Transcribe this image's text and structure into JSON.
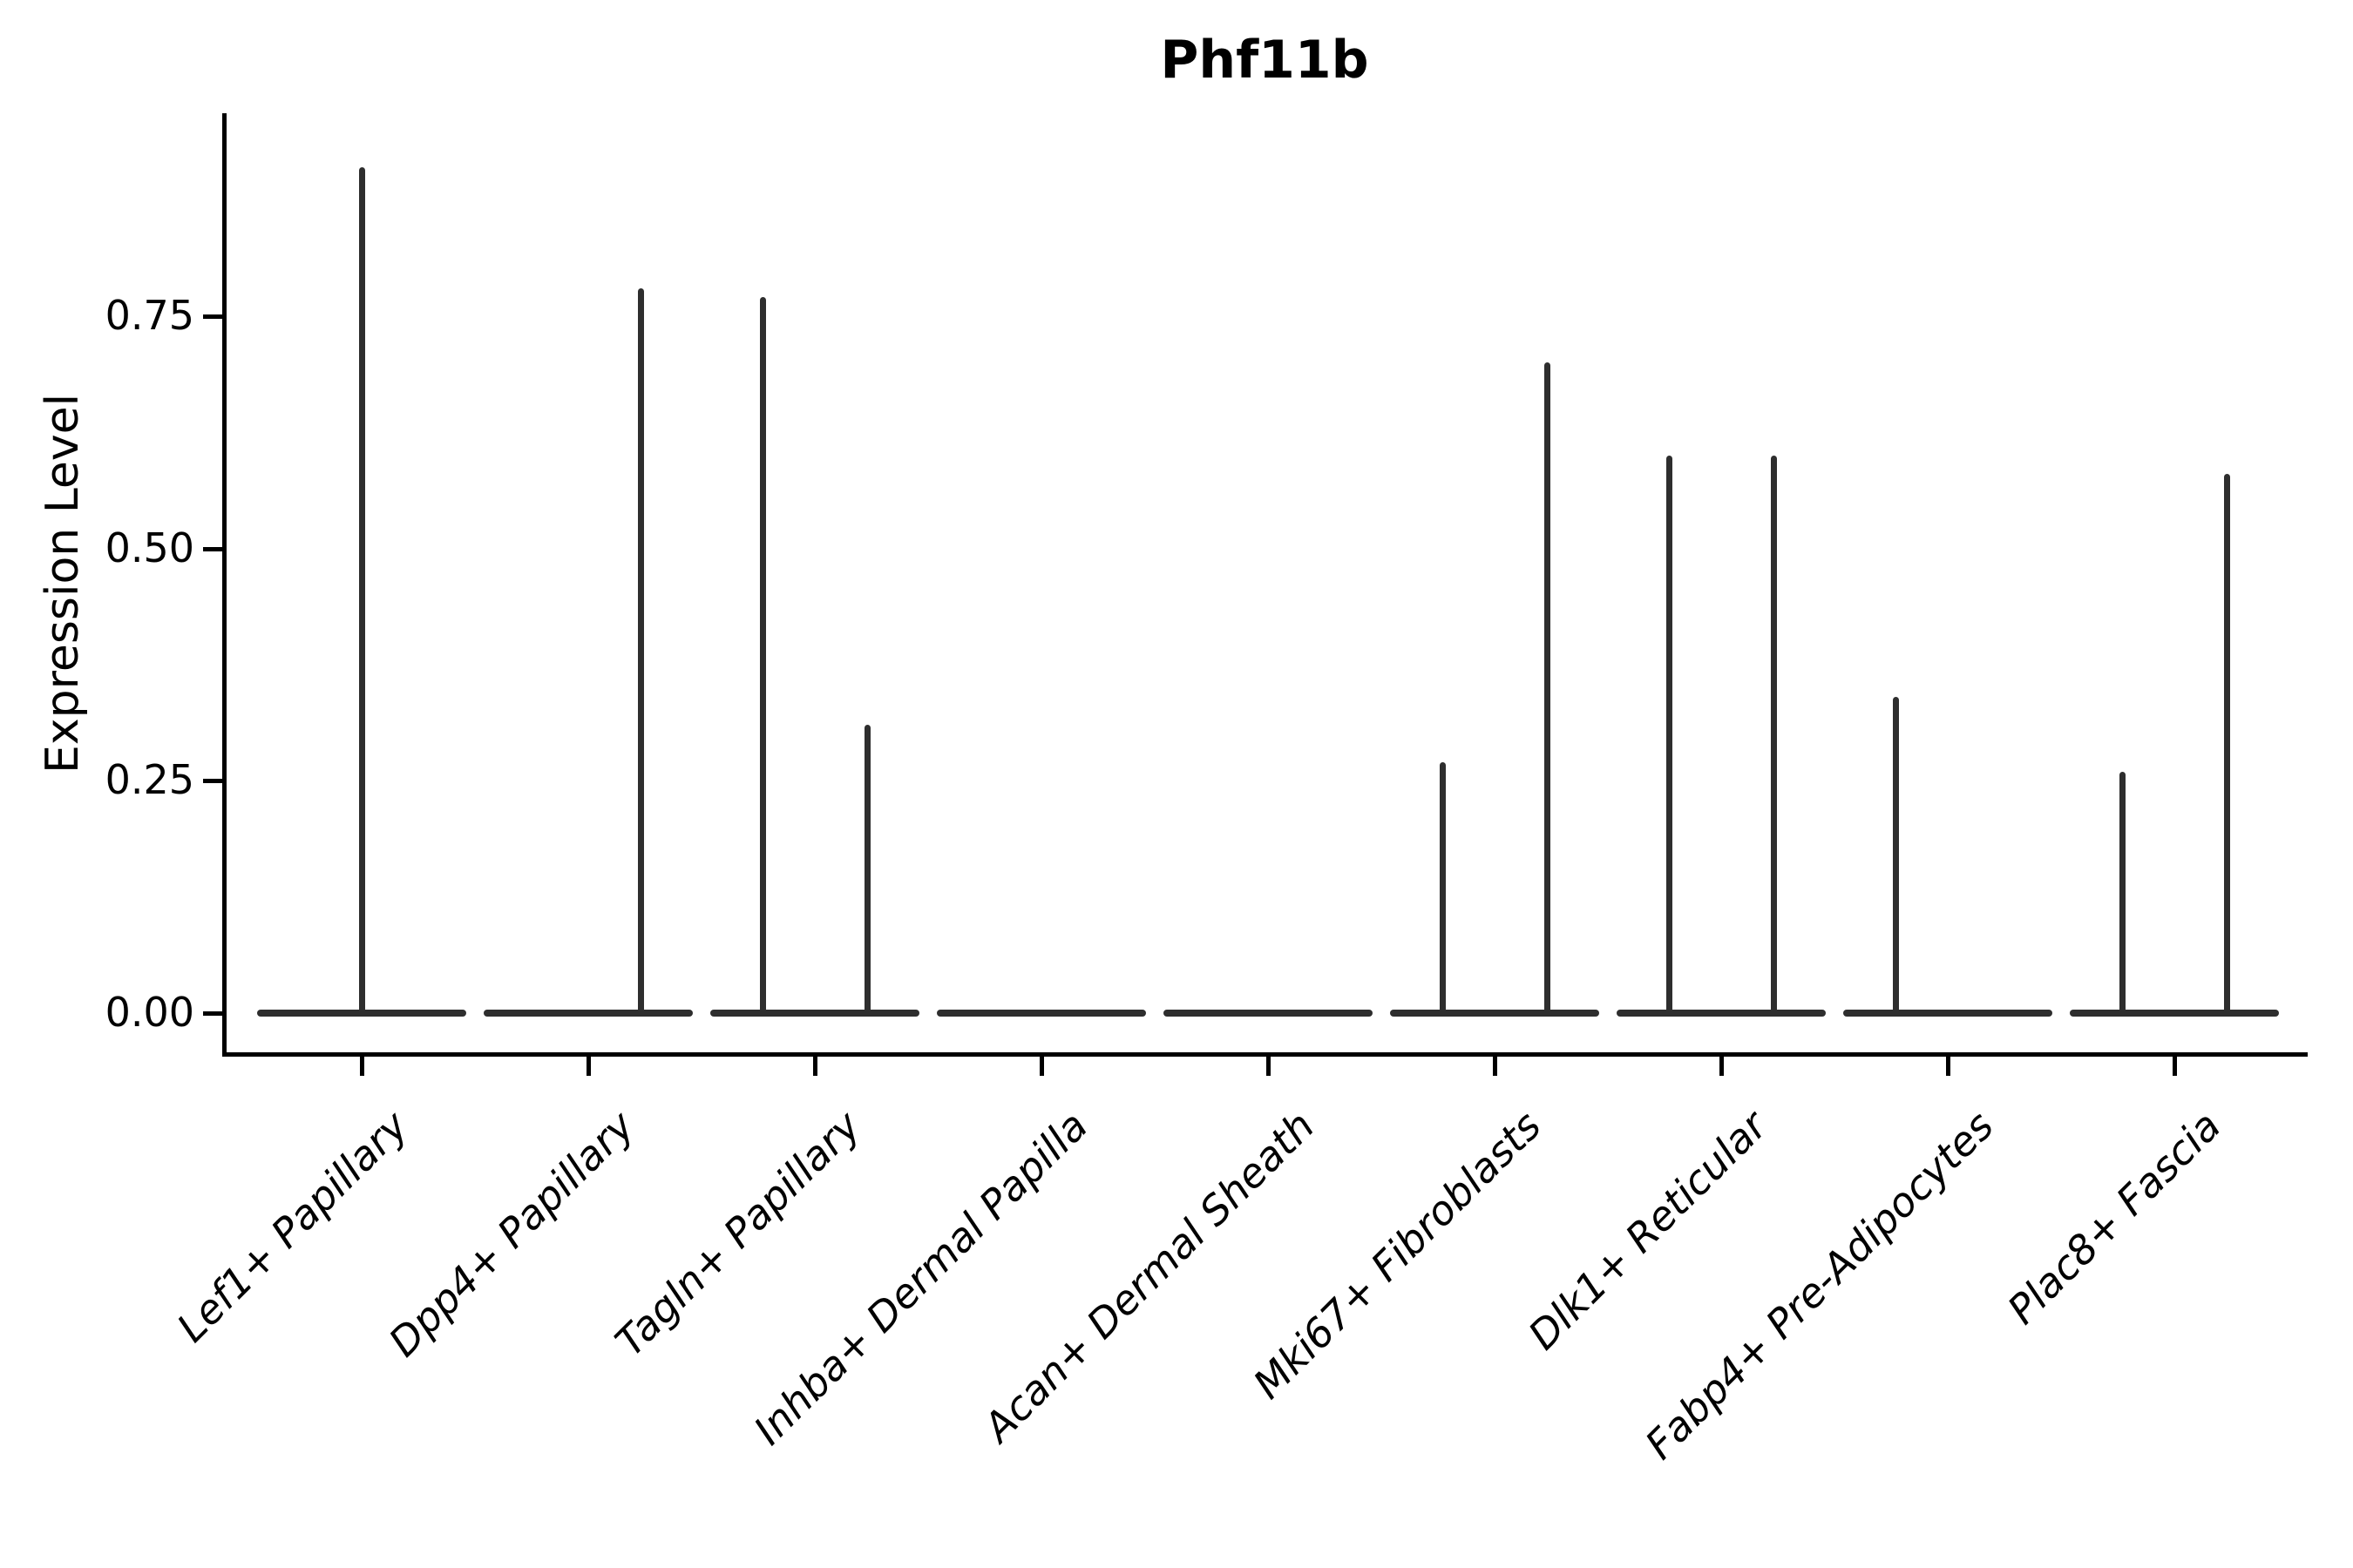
{
  "chart_data": {
    "type": "violin",
    "title": "Phf11b",
    "ylabel": "Expression Level",
    "xlabel": "",
    "ylim": [
      0,
      0.97
    ],
    "grid": false,
    "legend": "none",
    "yticks": [
      {
        "label": "0.00",
        "value": 0.0
      },
      {
        "label": "0.25",
        "value": 0.25
      },
      {
        "label": "0.50",
        "value": 0.5
      },
      {
        "label": "0.75",
        "value": 0.75
      }
    ],
    "categories": [
      "Lef1+ Papillary",
      "Dpp4+ Papillary",
      "Tagln+ Papillary",
      "Inhba+ Dermal Papilla",
      "Acan+ Dermal Sheath",
      "Mki67+ Fibroblasts",
      "Dlk1+ Reticular",
      "Fabp4+ Pre-Adipocytes",
      "Plac8+ Fascia"
    ],
    "groups": [
      {
        "category": "Lef1+ Papillary",
        "baseline_value": 0.0,
        "spikes": [
          {
            "position": "center",
            "max": 0.91
          }
        ]
      },
      {
        "category": "Dpp4+ Papillary",
        "baseline_value": 0.0,
        "spikes": [
          {
            "position": "right",
            "max": 0.78
          }
        ]
      },
      {
        "category": "Tagln+ Papillary",
        "baseline_value": 0.0,
        "spikes": [
          {
            "position": "left",
            "max": 0.77
          },
          {
            "position": "right",
            "max": 0.31
          }
        ]
      },
      {
        "category": "Inhba+ Dermal Papilla",
        "baseline_value": 0.0,
        "spikes": []
      },
      {
        "category": "Acan+ Dermal Sheath",
        "baseline_value": 0.0,
        "spikes": []
      },
      {
        "category": "Mki67+ Fibroblasts",
        "baseline_value": 0.0,
        "spikes": [
          {
            "position": "left",
            "max": 0.27
          },
          {
            "position": "right",
            "max": 0.7
          }
        ]
      },
      {
        "category": "Dlk1+ Reticular",
        "baseline_value": 0.0,
        "spikes": [
          {
            "position": "left",
            "max": 0.6
          },
          {
            "position": "right",
            "max": 0.6
          }
        ]
      },
      {
        "category": "Fabp4+ Pre-Adipocytes",
        "baseline_value": 0.0,
        "spikes": [
          {
            "position": "left",
            "max": 0.34
          }
        ]
      },
      {
        "category": "Plac8+ Fascia",
        "baseline_value": 0.0,
        "spikes": [
          {
            "position": "left",
            "max": 0.26
          },
          {
            "position": "right",
            "max": 0.58
          }
        ]
      }
    ],
    "colors": {
      "violin": "#2e2e2e",
      "axis": "#000000",
      "text": "#000000",
      "background": "#ffffff"
    }
  }
}
